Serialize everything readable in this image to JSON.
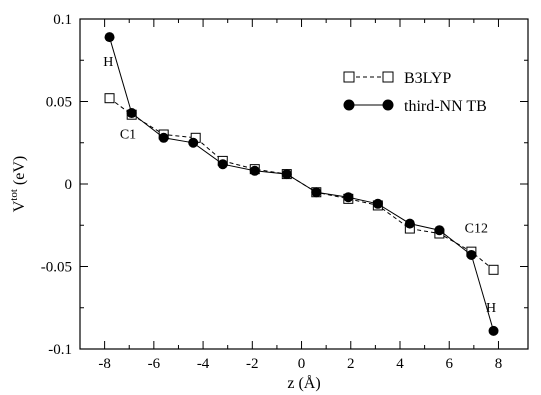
{
  "chart_data": {
    "type": "line",
    "xlabel": "z (Å)",
    "ylabel_main": "V",
    "ylabel_sup": "tot",
    "ylabel_unit": " (eV)",
    "xlim": [
      -9,
      9.2
    ],
    "ylim": [
      -0.1,
      0.1
    ],
    "xticks": [
      -8,
      -6,
      -4,
      -2,
      0,
      2,
      4,
      6,
      8
    ],
    "yticks": [
      -0.1,
      -0.05,
      0,
      0.05,
      0.1
    ],
    "ytick_labels": [
      "-0.1",
      "-0.05",
      "0",
      "0.05",
      "0.1"
    ],
    "grid": false,
    "legend_position": "top-right",
    "series": [
      {
        "name": "B3LYP",
        "style": "dashed",
        "marker": "open-square",
        "x": [
          -7.8,
          -6.9,
          -5.6,
          -4.3,
          -3.2,
          -1.9,
          -0.6,
          0.6,
          1.9,
          3.1,
          4.4,
          5.6,
          6.9,
          7.8
        ],
        "y": [
          0.052,
          0.042,
          0.03,
          0.028,
          0.014,
          0.009,
          0.006,
          -0.005,
          -0.009,
          -0.013,
          -0.027,
          -0.03,
          -0.041,
          -0.052
        ]
      },
      {
        "name": "third-NN TB",
        "style": "solid",
        "marker": "filled-circle",
        "x": [
          -7.8,
          -6.9,
          -5.6,
          -4.4,
          -3.2,
          -1.9,
          -0.6,
          0.6,
          1.9,
          3.1,
          4.4,
          5.6,
          6.9,
          7.8
        ],
        "y": [
          0.089,
          0.043,
          0.028,
          0.025,
          0.012,
          0.008,
          0.006,
          -0.005,
          -0.008,
          -0.012,
          -0.024,
          -0.028,
          -0.043,
          -0.089
        ]
      }
    ],
    "annotations": [
      {
        "text": "H",
        "x": -7.85,
        "y": 0.0745
      },
      {
        "text": "C1",
        "x": -7.05,
        "y": 0.0305
      },
      {
        "text": "C12",
        "x": 7.1,
        "y": -0.0265
      },
      {
        "text": "H",
        "x": 7.7,
        "y": -0.0745
      }
    ],
    "colors": {
      "axis": "#000000",
      "series": "#000000",
      "background": "#ffffff"
    }
  }
}
